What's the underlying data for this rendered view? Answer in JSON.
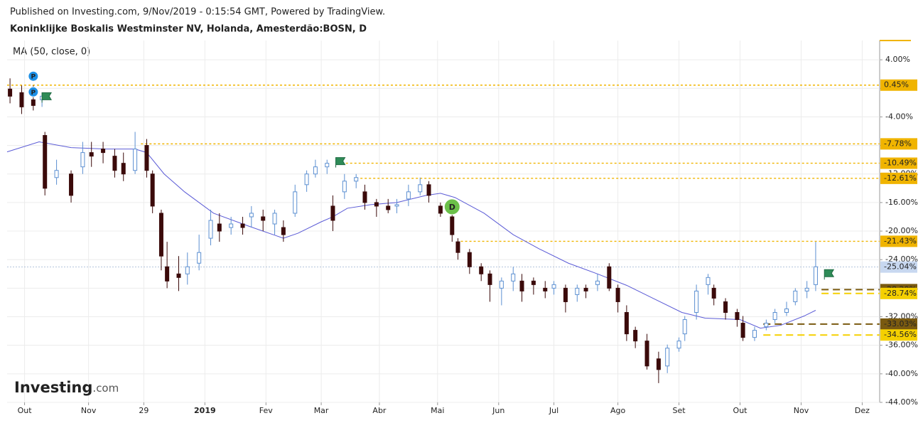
{
  "chart_data": {
    "type": "candlestick",
    "published": "Published on Investing.com, 9/Nov/2019 - 0:15:54 GMT, Powered by TradingView.",
    "title": "Koninklijke Boskalis Westminster NV, Holanda, Amesterdão:BOSN, D",
    "indicator": "MA (50, close, 0)",
    "logo": [
      "Investing",
      ".com"
    ],
    "xlim": [
      0,
      300
    ],
    "ylim": [
      -44,
      6.7
    ],
    "xticks": [
      {
        "value": 6,
        "label": "Out"
      },
      {
        "value": 28,
        "label": "Nov"
      },
      {
        "value": 47,
        "label": "29"
      },
      {
        "value": 68,
        "label": "2019"
      },
      {
        "value": 89,
        "label": "Fev"
      },
      {
        "value": 108,
        "label": "Mar"
      },
      {
        "value": 128,
        "label": "Abr"
      },
      {
        "value": 148,
        "label": "Mai"
      },
      {
        "value": 169,
        "label": "Jun"
      },
      {
        "value": 188,
        "label": "Jul"
      },
      {
        "value": 210,
        "label": "Ago"
      },
      {
        "value": 231,
        "label": "Set"
      },
      {
        "value": 252,
        "label": "Out"
      },
      {
        "value": 273,
        "label": "Nov"
      },
      {
        "value": 294,
        "label": "Dez"
      }
    ],
    "yticks": [
      {
        "value": 4,
        "label": "4.00%"
      },
      {
        "value": 0,
        "label": "0.00%"
      },
      {
        "value": -4,
        "label": "-4.00%"
      },
      {
        "value": -8,
        "label": "-8.00%"
      },
      {
        "value": -12,
        "label": "-12.00%"
      },
      {
        "value": -16,
        "label": "-16.00%"
      },
      {
        "value": -20,
        "label": "-20.00%"
      },
      {
        "value": -24,
        "label": "-24.00%"
      },
      {
        "value": -28,
        "label": "-28.00%"
      },
      {
        "value": -32,
        "label": "-32.00%"
      },
      {
        "value": -36,
        "label": "-36.00%"
      },
      {
        "value": -40,
        "label": "-40.00%"
      },
      {
        "value": -44,
        "label": "-44.00%"
      }
    ],
    "grid": true,
    "up_color": "#5b8fd1",
    "down_color": "#3b0a0a",
    "x": [
      1,
      5,
      9,
      12,
      13,
      17,
      22,
      26,
      29,
      33,
      37,
      40,
      44,
      48,
      50,
      53,
      55,
      59,
      62,
      66,
      70,
      73,
      77,
      81,
      84,
      88,
      92,
      95,
      99,
      103,
      106,
      110,
      112,
      116,
      120,
      123,
      127,
      131,
      134,
      138,
      142,
      145,
      149,
      153,
      155,
      159,
      163,
      166,
      170,
      174,
      177,
      181,
      185,
      188,
      192,
      196,
      199,
      203,
      207,
      210,
      213,
      216,
      220,
      224,
      227,
      231,
      233,
      237,
      241,
      243,
      247,
      251,
      253,
      257,
      261,
      264,
      268,
      271,
      275,
      278
    ],
    "open": [
      -0.1,
      -0.6,
      -1.6,
      -1.6,
      -6.6,
      -12.5,
      -12.0,
      -11.0,
      -9.0,
      -8.5,
      -9.5,
      -10.5,
      -11.5,
      -8.0,
      -12.0,
      -17.5,
      -25.0,
      -26.0,
      -26.0,
      -24.5,
      -21.0,
      -19.0,
      -19.5,
      -19.0,
      -18.0,
      -18.0,
      -19.0,
      -19.5,
      -17.5,
      -13.5,
      -12.0,
      -11.0,
      -16.5,
      -14.5,
      -13.0,
      -14.5,
      -16.0,
      -16.5,
      -16.5,
      -15.5,
      -14.5,
      -13.5,
      -16.5,
      -18.0,
      -21.5,
      -23.0,
      -25.0,
      -26.0,
      -28.0,
      -27.0,
      -27.0,
      -27.0,
      -28.0,
      -28.0,
      -28.0,
      -28.9,
      -28.0,
      -27.5,
      -25.0,
      -28.0,
      -31.4,
      -33.9,
      -35.4,
      -37.9,
      -38.9,
      -36.4,
      -34.4,
      -31.4,
      -27.5,
      -28.0,
      -29.9,
      -31.4,
      -32.9,
      -34.9,
      -33.4,
      -32.4,
      -31.4,
      -29.9,
      -28.4,
      -27.5
    ],
    "high": [
      1.4,
      0.4,
      0.4,
      -0.6,
      -6.1,
      -10.0,
      -11.5,
      -7.5,
      -7.5,
      -7.5,
      -8.5,
      -9.0,
      -6.1,
      -7.1,
      -11.5,
      -17.0,
      -21.5,
      -23.5,
      -23.0,
      -20.5,
      -17.0,
      -17.5,
      -18.0,
      -18.0,
      -16.5,
      -17.0,
      -17.0,
      -18.5,
      -13.5,
      -11.5,
      -10.0,
      -10.0,
      -15.0,
      -12.0,
      -12.0,
      -13.5,
      -15.5,
      -15.5,
      -15.5,
      -13.5,
      -12.5,
      -13.0,
      -16.0,
      -17.5,
      -21.0,
      -22.5,
      -24.5,
      -25.5,
      -26.5,
      -25.0,
      -26.0,
      -26.5,
      -27.0,
      -27.0,
      -27.5,
      -27.5,
      -27.5,
      -26.0,
      -24.5,
      -27.5,
      -30.4,
      -33.4,
      -34.4,
      -36.9,
      -35.9,
      -34.9,
      -31.9,
      -27.5,
      -26.0,
      -27.5,
      -29.4,
      -30.9,
      -31.9,
      -33.4,
      -32.4,
      -30.9,
      -29.9,
      -28.0,
      -27.0,
      -21.5
    ],
    "low": [
      -2.1,
      -3.6,
      -3.1,
      -2.6,
      -15.0,
      -13.5,
      -16.0,
      -12.0,
      -11.0,
      -10.5,
      -12.5,
      -13.0,
      -12.0,
      -12.5,
      -17.5,
      -25.5,
      -28.0,
      -28.4,
      -27.5,
      -25.5,
      -22.0,
      -21.5,
      -20.5,
      -20.5,
      -19.5,
      -20.0,
      -20.5,
      -21.5,
      -18.0,
      -14.5,
      -12.5,
      -12.0,
      -20.0,
      -15.5,
      -14.0,
      -17.0,
      -18.0,
      -17.5,
      -17.5,
      -16.5,
      -15.0,
      -16.0,
      -18.0,
      -21.5,
      -24.0,
      -26.0,
      -27.0,
      -29.9,
      -30.4,
      -28.4,
      -29.9,
      -28.9,
      -29.4,
      -28.9,
      -31.4,
      -29.9,
      -29.4,
      -28.4,
      -28.4,
      -31.4,
      -35.4,
      -36.4,
      -39.4,
      -41.3,
      -39.9,
      -36.9,
      -35.4,
      -32.4,
      -28.9,
      -30.4,
      -32.4,
      -33.4,
      -35.4,
      -35.4,
      -33.9,
      -32.9,
      -31.9,
      -30.4,
      -29.4,
      -28.4
    ],
    "close": [
      -1.1,
      -2.6,
      -2.4,
      -1.1,
      -14.0,
      -11.5,
      -15.0,
      -9.0,
      -9.5,
      -9.0,
      -11.5,
      -12.0,
      -8.5,
      -11.5,
      -16.5,
      -23.5,
      -27.0,
      -26.5,
      -25.0,
      -23.0,
      -18.5,
      -20.0,
      -19.0,
      -19.5,
      -17.5,
      -18.5,
      -17.5,
      -20.5,
      -14.5,
      -12.0,
      -11.0,
      -10.5,
      -18.5,
      -13.0,
      -12.5,
      -16.0,
      -16.5,
      -17.0,
      -16.3,
      -14.5,
      -13.5,
      -15.0,
      -17.5,
      -20.5,
      -23.0,
      -25.0,
      -26.0,
      -27.5,
      -27.0,
      -26.0,
      -28.4,
      -27.5,
      -28.4,
      -27.5,
      -29.9,
      -28.0,
      -28.4,
      -27.0,
      -28.0,
      -29.9,
      -34.4,
      -35.4,
      -38.9,
      -39.4,
      -36.4,
      -35.4,
      -32.4,
      -28.4,
      -26.5,
      -29.4,
      -31.4,
      -32.4,
      -34.9,
      -33.9,
      -32.9,
      -31.4,
      -30.9,
      -28.4,
      -28.0,
      -25.0
    ],
    "ma": {
      "name": "MA (50, close, 0)",
      "color": "#5b5bd6",
      "x": [
        0,
        11,
        22,
        34,
        44,
        48,
        54,
        61,
        71,
        83,
        95,
        100,
        108,
        112,
        117,
        125,
        134,
        144,
        149,
        154,
        164,
        174,
        183,
        193,
        203,
        213,
        222,
        232,
        240,
        252,
        259,
        266,
        274,
        278
      ],
      "values": [
        -8.9,
        -7.5,
        -8.3,
        -8.5,
        -8.5,
        -9.0,
        -12.0,
        -14.5,
        -17.5,
        -19.3,
        -21.0,
        -20.3,
        -18.7,
        -18.0,
        -16.8,
        -16.3,
        -16.0,
        -15.0,
        -14.7,
        -15.3,
        -17.5,
        -20.5,
        -22.5,
        -24.5,
        -26.0,
        -27.6,
        -29.4,
        -31.4,
        -32.2,
        -32.4,
        -33.6,
        -33.2,
        -31.9,
        -31.1
      ]
    },
    "levels": [
      {
        "value": 0.45,
        "label": "0.45%",
        "start": 0,
        "color": "#f0b400",
        "style": "dotted"
      },
      {
        "value": -7.78,
        "label": "-7.78%",
        "start": 46,
        "color": "#f0b400",
        "style": "dotted"
      },
      {
        "value": -10.49,
        "label": "-10.49%",
        "start": 115,
        "color": "#f0b400",
        "style": "dotted"
      },
      {
        "value": -12.61,
        "label": "-12.61%",
        "start": 120,
        "color": "#f0b400",
        "style": "dotted"
      },
      {
        "value": -21.43,
        "label": "-21.43%",
        "start": 156,
        "color": "#f0b400",
        "style": "dotted"
      },
      {
        "value": -25.04,
        "label": "-25.04%",
        "start": 0,
        "color": "#c8d8f0",
        "style": "current"
      },
      {
        "value": -28.2,
        "label": "-28.20%",
        "start": 280,
        "color": "#7a5a10",
        "style": "dashed"
      },
      {
        "value": -28.74,
        "label": "-28.74%",
        "start": 280,
        "color": "#f5d000",
        "style": "dashed"
      },
      {
        "value": -33.03,
        "label": "-33.03%",
        "start": 260,
        "color": "#7a5a10",
        "style": "dashed"
      },
      {
        "value": -34.56,
        "label": "-34.56%",
        "start": 260,
        "color": "#f5d000",
        "style": "dashed"
      }
    ],
    "markers": [
      {
        "label": "P",
        "x": 9,
        "y": 1.7,
        "color": "#1e90e6"
      },
      {
        "label": "P",
        "x": 9,
        "y": -0.5,
        "color": "#1e90e6"
      },
      {
        "label": "D",
        "x": 153,
        "y": -16.6,
        "color": "#6cc04a"
      }
    ],
    "flags": [
      {
        "x": 12,
        "y": -1.3
      },
      {
        "x": 113,
        "y": -10.4
      },
      {
        "x": 281,
        "y": -26.1
      }
    ]
  }
}
